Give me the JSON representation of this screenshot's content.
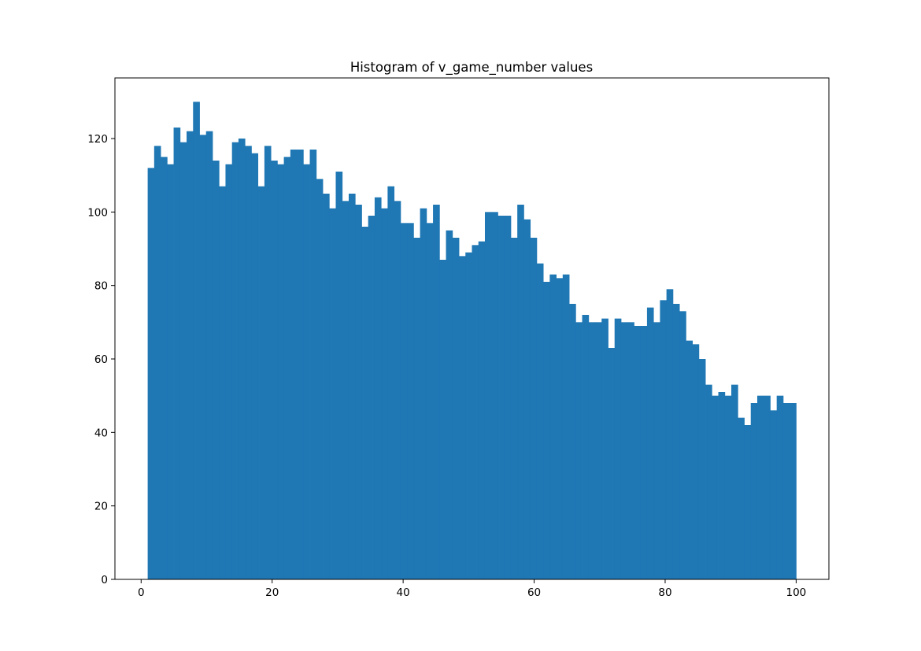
{
  "chart_data": {
    "type": "bar",
    "title": "Histogram of v_game_number values",
    "xlabel": "",
    "ylabel": "",
    "xlim": [
      -4,
      105
    ],
    "ylim": [
      0,
      136.5
    ],
    "xticks": [
      0,
      20,
      40,
      60,
      80,
      100
    ],
    "yticks": [
      0,
      20,
      40,
      60,
      80,
      100,
      120
    ],
    "bin_start": 1,
    "bin_end": 100,
    "bar_color": "#1f77b4",
    "grid": false,
    "legend": "none",
    "values": [
      112,
      118,
      115,
      113,
      123,
      119,
      122,
      130,
      121,
      122,
      114,
      107,
      113,
      119,
      120,
      118,
      116,
      107,
      118,
      114,
      113,
      115,
      117,
      117,
      113,
      117,
      109,
      105,
      101,
      111,
      103,
      105,
      102,
      96,
      99,
      104,
      101,
      107,
      103,
      97,
      97,
      93,
      101,
      97,
      102,
      87,
      95,
      93,
      88,
      89,
      91,
      92,
      100,
      100,
      99,
      99,
      93,
      102,
      98,
      93,
      86,
      81,
      83,
      82,
      83,
      75,
      70,
      72,
      70,
      70,
      71,
      63,
      71,
      70,
      70,
      69,
      69,
      74,
      70,
      76,
      79,
      75,
      73,
      65,
      64,
      60,
      53,
      50,
      51,
      50,
      53,
      44,
      42,
      48,
      50,
      50,
      46,
      50,
      48,
      48
    ]
  }
}
